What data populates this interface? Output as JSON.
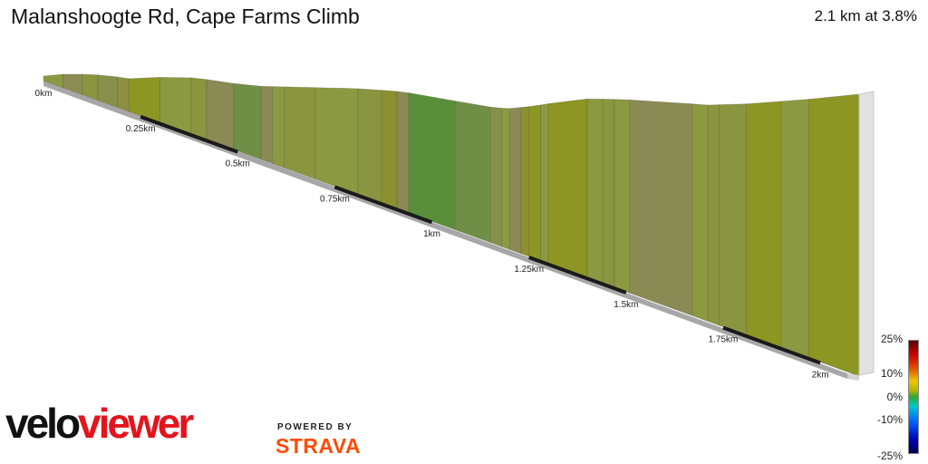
{
  "header": {
    "title": "Malanshoogte Rd, Cape Farms Climb",
    "summary": "2.1 km at 3.8%"
  },
  "branding": {
    "velo": "velo",
    "viewer": "viewer",
    "powered_by": "POWERED BY",
    "strava": "STRAVA",
    "velo_color": "#111111",
    "viewer_color": "#e3141d",
    "strava_color": "#fc4c02"
  },
  "legend": {
    "labels": [
      "25%",
      "10%",
      "0%",
      "-10%",
      "-25%"
    ]
  },
  "chart_data": {
    "type": "area",
    "title": "Malanshoogte Rd, Cape Farms Climb",
    "x_unit": "km",
    "xlim": [
      0,
      2.1
    ],
    "distance_ticks": [
      {
        "km": 0,
        "label": "0km"
      },
      {
        "km": 0.25,
        "label": "0.25km"
      },
      {
        "km": 0.5,
        "label": "0.5km"
      },
      {
        "km": 0.75,
        "label": "0.75km"
      },
      {
        "km": 1,
        "label": "1km"
      },
      {
        "km": 1.25,
        "label": "1.25km"
      },
      {
        "km": 1.5,
        "label": "1.5km"
      },
      {
        "km": 1.75,
        "label": "1.75km"
      },
      {
        "km": 2,
        "label": "2km"
      }
    ],
    "gradient_colors": {
      "flat": "#8a8a55",
      "slight": "#8b9a40",
      "moderate": "#8c9622",
      "descent": "#5a8f3a"
    },
    "segments": [
      {
        "start": 0.0,
        "end": 0.05,
        "color": "#8b9a40"
      },
      {
        "start": 0.05,
        "end": 0.1,
        "color": "#8c8c55"
      },
      {
        "start": 0.1,
        "end": 0.14,
        "color": "#8a9540"
      },
      {
        "start": 0.14,
        "end": 0.19,
        "color": "#86904a"
      },
      {
        "start": 0.19,
        "end": 0.22,
        "color": "#8a9040"
      },
      {
        "start": 0.22,
        "end": 0.3,
        "color": "#8c9622"
      },
      {
        "start": 0.3,
        "end": 0.38,
        "color": "#8b9a40"
      },
      {
        "start": 0.38,
        "end": 0.42,
        "color": "#8a9540"
      },
      {
        "start": 0.42,
        "end": 0.49,
        "color": "#8a8a55"
      },
      {
        "start": 0.49,
        "end": 0.56,
        "color": "#6f8f46"
      },
      {
        "start": 0.56,
        "end": 0.59,
        "color": "#8a8a55"
      },
      {
        "start": 0.59,
        "end": 0.62,
        "color": "#8b9a40"
      },
      {
        "start": 0.62,
        "end": 0.7,
        "color": "#8a9540"
      },
      {
        "start": 0.7,
        "end": 0.81,
        "color": "#8b9a40"
      },
      {
        "start": 0.81,
        "end": 0.87,
        "color": "#8a9540"
      },
      {
        "start": 0.87,
        "end": 0.91,
        "color": "#8c9030"
      },
      {
        "start": 0.91,
        "end": 0.94,
        "color": "#8a8a55"
      },
      {
        "start": 0.94,
        "end": 1.06,
        "color": "#5a8f3a"
      },
      {
        "start": 1.06,
        "end": 1.15,
        "color": "#6f8f46"
      },
      {
        "start": 1.15,
        "end": 1.18,
        "color": "#86904a"
      },
      {
        "start": 1.18,
        "end": 1.2,
        "color": "#8b9a40"
      },
      {
        "start": 1.2,
        "end": 1.23,
        "color": "#8a8a55"
      },
      {
        "start": 1.23,
        "end": 1.25,
        "color": "#8c9030"
      },
      {
        "start": 1.25,
        "end": 1.28,
        "color": "#8c9622"
      },
      {
        "start": 1.28,
        "end": 1.3,
        "color": "#8b9a40"
      },
      {
        "start": 1.3,
        "end": 1.4,
        "color": "#8c9622"
      },
      {
        "start": 1.4,
        "end": 1.44,
        "color": "#8b9a40"
      },
      {
        "start": 1.44,
        "end": 1.47,
        "color": "#8a9540"
      },
      {
        "start": 1.47,
        "end": 1.51,
        "color": "#8b9a40"
      },
      {
        "start": 1.51,
        "end": 1.67,
        "color": "#8a8a55"
      },
      {
        "start": 1.67,
        "end": 1.71,
        "color": "#8b9a40"
      },
      {
        "start": 1.71,
        "end": 1.74,
        "color": "#8a9540"
      },
      {
        "start": 1.74,
        "end": 1.81,
        "color": "#8a9540"
      },
      {
        "start": 1.81,
        "end": 1.9,
        "color": "#8c9622"
      },
      {
        "start": 1.9,
        "end": 1.97,
        "color": "#8b9a40"
      },
      {
        "start": 1.97,
        "end": 2.1,
        "color": "#8c9622"
      }
    ]
  }
}
